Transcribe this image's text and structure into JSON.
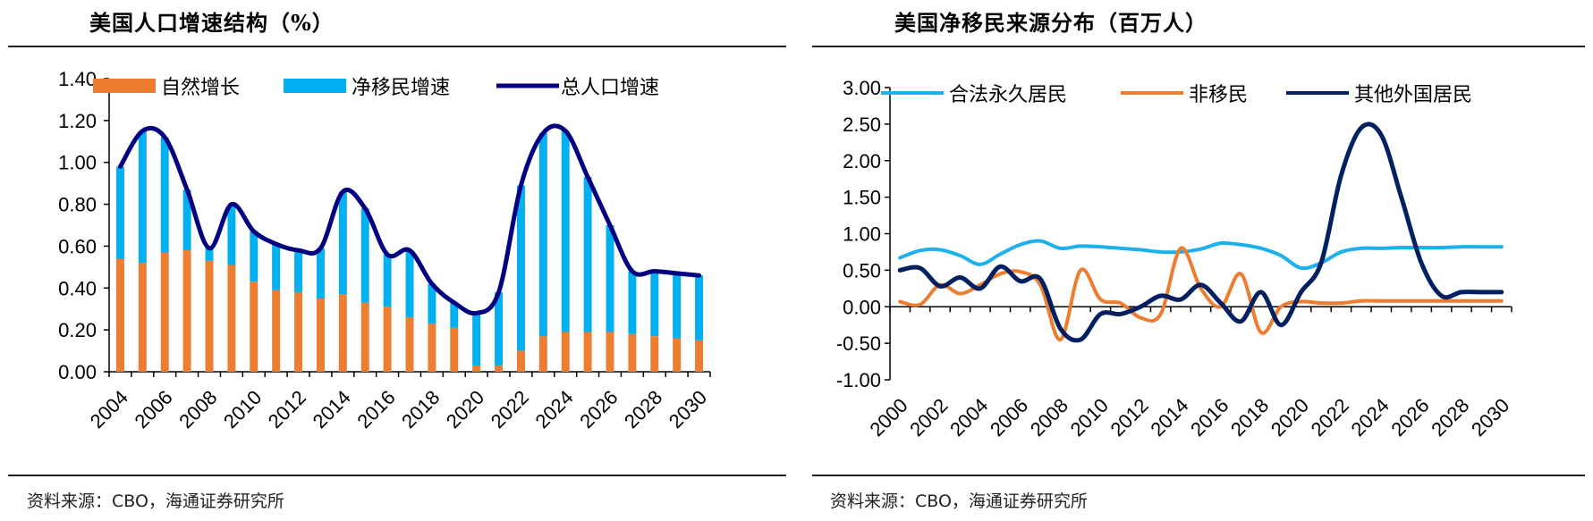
{
  "left": {
    "title": "美国人口增速结构（%）",
    "source": "资料来源：CBO，海通证券研究所"
  },
  "right": {
    "title": "美国净移民来源分布（百万人）",
    "source": "资料来源：CBO，海通证券研究所"
  },
  "chart_data": [
    {
      "type": "bar",
      "stacked": true,
      "title": "美国人口增速结构（%）",
      "xlabel": "",
      "ylabel": "",
      "ylim": [
        0,
        1.4
      ],
      "yticks": [
        "0.00",
        "0.20",
        "0.40",
        "0.60",
        "0.80",
        "1.00",
        "1.20",
        "1.40"
      ],
      "ytick_values": [
        0,
        0.2,
        0.4,
        0.6,
        0.8,
        1.0,
        1.2,
        1.4
      ],
      "categories": [
        "2004",
        "2005",
        "2006",
        "2007",
        "2008",
        "2009",
        "2010",
        "2011",
        "2012",
        "2013",
        "2014",
        "2015",
        "2016",
        "2017",
        "2018",
        "2019",
        "2020",
        "2021",
        "2022",
        "2023",
        "2024",
        "2025",
        "2026",
        "2027",
        "2028",
        "2029",
        "2030"
      ],
      "xtick_labels": [
        "2004",
        "2006",
        "2008",
        "2010",
        "2012",
        "2014",
        "2016",
        "2018",
        "2020",
        "2022",
        "2024",
        "2026",
        "2028",
        "2030"
      ],
      "legend_position": "top",
      "series": [
        {
          "name": "自然增长",
          "kind": "bar",
          "color": "#ED7D31",
          "values": [
            0.54,
            0.52,
            0.57,
            0.58,
            0.53,
            0.51,
            0.43,
            0.39,
            0.38,
            0.35,
            0.37,
            0.33,
            0.31,
            0.26,
            0.23,
            0.21,
            0.03,
            0.03,
            0.1,
            0.17,
            0.19,
            0.19,
            0.19,
            0.18,
            0.17,
            0.16,
            0.15
          ]
        },
        {
          "name": "净移民增速",
          "kind": "bar",
          "color": "#00B0F0",
          "values": [
            0.44,
            0.63,
            0.55,
            0.29,
            0.06,
            0.29,
            0.24,
            0.22,
            0.2,
            0.24,
            0.49,
            0.45,
            0.25,
            0.32,
            0.19,
            0.12,
            0.25,
            0.35,
            0.79,
            0.97,
            0.96,
            0.74,
            0.51,
            0.3,
            0.31,
            0.31,
            0.31
          ]
        },
        {
          "name": "总人口增速",
          "kind": "line",
          "color": "#000080",
          "values": [
            0.98,
            1.15,
            1.12,
            0.87,
            0.59,
            0.8,
            0.67,
            0.61,
            0.58,
            0.59,
            0.86,
            0.78,
            0.56,
            0.58,
            0.42,
            0.33,
            0.28,
            0.38,
            0.89,
            1.14,
            1.15,
            0.93,
            0.7,
            0.48,
            0.48,
            0.47,
            0.46
          ]
        }
      ]
    },
    {
      "type": "line",
      "title": "美国净移民来源分布（百万人）",
      "xlabel": "",
      "ylabel": "",
      "ylim": [
        -1.0,
        3.0
      ],
      "yticks": [
        "-1.00",
        "-0.50",
        "0.00",
        "0.50",
        "1.00",
        "1.50",
        "2.00",
        "2.50",
        "3.00"
      ],
      "ytick_values": [
        -1,
        -0.5,
        0,
        0.5,
        1,
        1.5,
        2,
        2.5,
        3
      ],
      "x": [
        2000,
        2001,
        2002,
        2003,
        2004,
        2005,
        2006,
        2007,
        2008,
        2009,
        2010,
        2011,
        2012,
        2013,
        2014,
        2015,
        2016,
        2017,
        2018,
        2019,
        2020,
        2021,
        2022,
        2023,
        2024,
        2025,
        2026,
        2027,
        2028,
        2029,
        2030
      ],
      "xtick_labels": [
        "2000",
        "2002",
        "2004",
        "2006",
        "2008",
        "2010",
        "2012",
        "2014",
        "2016",
        "2018",
        "2020",
        "2022",
        "2024",
        "2026",
        "2028",
        "2030"
      ],
      "legend_position": "top",
      "series": [
        {
          "name": "合法永久居民",
          "color": "#1CB0EC",
          "values": [
            0.67,
            0.77,
            0.78,
            0.7,
            0.58,
            0.72,
            0.85,
            0.9,
            0.8,
            0.83,
            0.82,
            0.8,
            0.78,
            0.75,
            0.75,
            0.79,
            0.87,
            0.85,
            0.8,
            0.7,
            0.53,
            0.6,
            0.75,
            0.8,
            0.8,
            0.81,
            0.81,
            0.81,
            0.82,
            0.82,
            0.82
          ]
        },
        {
          "name": "非移民",
          "color": "#ED7D31",
          "values": [
            0.07,
            0.03,
            0.3,
            0.18,
            0.3,
            0.45,
            0.48,
            0.3,
            -0.45,
            0.5,
            0.1,
            0.05,
            -0.15,
            -0.1,
            0.8,
            0.25,
            0.0,
            0.45,
            -0.35,
            0.0,
            0.07,
            0.05,
            0.05,
            0.08,
            0.08,
            0.08,
            0.08,
            0.08,
            0.08,
            0.08,
            0.08
          ]
        },
        {
          "name": "其他外国居民",
          "color": "#002060",
          "values": [
            0.5,
            0.53,
            0.28,
            0.4,
            0.25,
            0.55,
            0.35,
            0.38,
            -0.3,
            -0.45,
            -0.1,
            -0.1,
            0.0,
            0.15,
            0.1,
            0.3,
            0.05,
            -0.2,
            0.2,
            -0.25,
            0.2,
            0.6,
            1.8,
            2.45,
            2.35,
            1.5,
            0.6,
            0.15,
            0.2,
            0.2,
            0.2
          ]
        }
      ]
    }
  ]
}
